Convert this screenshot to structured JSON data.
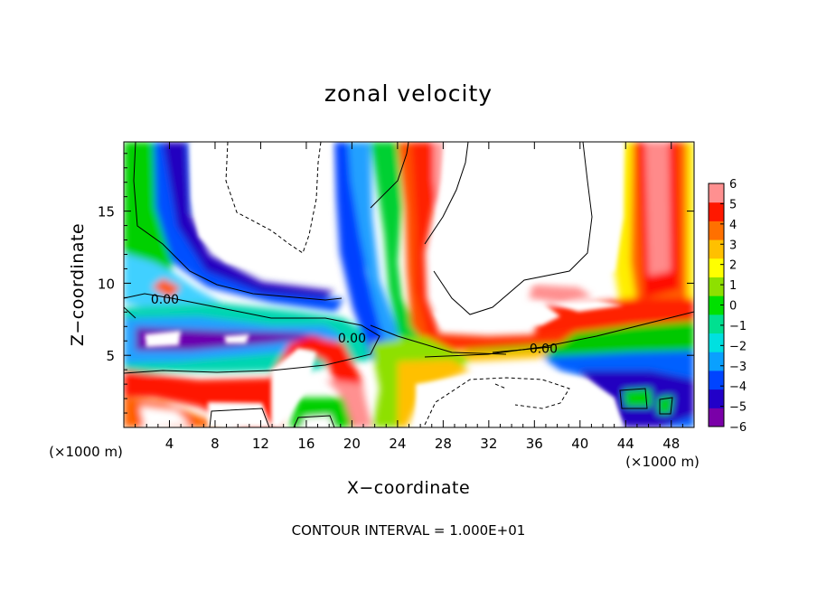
{
  "chart_data": {
    "type": "heatmap",
    "title": "zonal velocity",
    "xlabel": "X−coordinate",
    "ylabel": "Z−coordinate",
    "x_unit_left": "(×1000 m)",
    "x_unit_right": "(×1000 m)",
    "xlim": [
      0,
      50
    ],
    "ylim": [
      0,
      19.8
    ],
    "x_ticks": [
      4,
      8,
      12,
      16,
      20,
      24,
      28,
      32,
      36,
      40,
      44,
      48
    ],
    "x_tick_labels": [
      "4",
      "8",
      "12",
      "16",
      "20",
      "24",
      "28",
      "32",
      "36",
      "40",
      "44",
      "48"
    ],
    "y_ticks": [
      5,
      10,
      15
    ],
    "y_tick_labels": [
      "5",
      "10",
      "15"
    ],
    "colorbar": {
      "min": -6,
      "max": 6,
      "ticks": [
        6,
        5,
        4,
        3,
        2,
        1,
        0,
        -1,
        -2,
        -3,
        -4,
        -5,
        -6
      ],
      "tick_labels": [
        "6",
        "5",
        "4",
        "3",
        "2",
        "1",
        "0",
        "−1",
        "−2",
        "−3",
        "−4",
        "−5",
        "−6"
      ],
      "colors": [
        "#7a00a8",
        "#2200c8",
        "#0044ff",
        "#0aa0ff",
        "#00e0e0",
        "#00e090",
        "#00e000",
        "#8ee000",
        "#ffff00",
        "#ffc000",
        "#ff7000",
        "#ff1800",
        "#ff9090"
      ]
    },
    "contour_labels": [
      {
        "text": "0.00",
        "x": 3.6,
        "z": 8.7
      },
      {
        "text": "0.00",
        "x": 20.0,
        "z": 6.0
      },
      {
        "text": "0.00",
        "x": 36.8,
        "z": 5.3
      }
    ],
    "footer": "CONTOUR INTERVAL = 1.000E+01"
  }
}
